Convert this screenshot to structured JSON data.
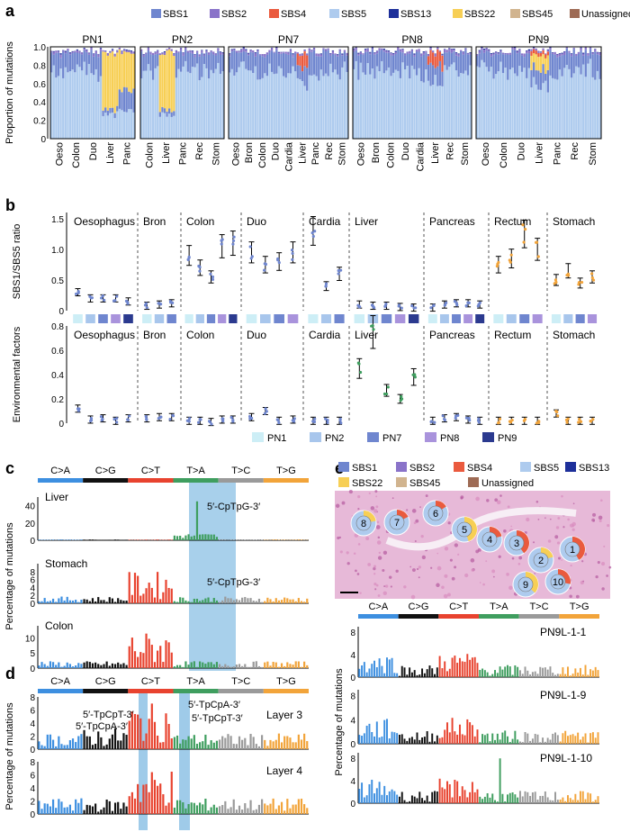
{
  "panels": {
    "a": "a",
    "b": "b",
    "c": "c",
    "d": "d",
    "e": "e"
  },
  "colors": {
    "SBS1": "#6f86cf",
    "SBS2": "#8a73c9",
    "SBS4": "#ea5a3e",
    "SBS5": "#aecbee",
    "SBS13": "#1d2f9a",
    "SBS22": "#f7cf55",
    "SBS45": "#d1b48f",
    "Unassigned": "#9e6b55",
    "PN1": "#cdeef6",
    "PN2": "#a8c6ec",
    "PN7": "#6f86cf",
    "PN8": "#a993dc",
    "PN9": "#2b3a8f",
    "CA": "#3d8fe0",
    "CG": "#111111",
    "CT": "#e8432f",
    "TA": "#3f9e5f",
    "TC": "#9a9a9a",
    "TG": "#f2a43a",
    "highlight": "#9fcbe9"
  },
  "legend_a": [
    "SBS1",
    "SBS2",
    "SBS4",
    "SBS5",
    "SBS13",
    "SBS22",
    "SBS45",
    "Unassigned"
  ],
  "chart_data": [
    {
      "id": "a",
      "type": "bar",
      "stacked": true,
      "ylabel": "Proportion of mutations",
      "ylim": [
        0,
        1
      ],
      "yticks": [
        "0",
        "0.2",
        "0.4",
        "0.6",
        "0.8",
        "1.0"
      ],
      "groups": [
        {
          "name": "PN1",
          "xlabels": [
            "Oeso",
            "Colon",
            "Duo",
            "Liver",
            "Panc"
          ]
        },
        {
          "name": "PN2",
          "xlabels": [
            "Colon",
            "Liver",
            "Panc",
            "Rec",
            "Stom"
          ]
        },
        {
          "name": "PN7",
          "xlabels": [
            "Oeso",
            "Bron",
            "Colon",
            "Duo",
            "Cardia",
            "Liver",
            "Panc",
            "Rec",
            "Stom"
          ]
        },
        {
          "name": "PN8",
          "xlabels": [
            "Oeso",
            "Bron",
            "Colon",
            "Duo",
            "Cardia",
            "Liver",
            "Rec",
            "Stom"
          ]
        },
        {
          "name": "PN9",
          "xlabels": [
            "Oeso",
            "Colon",
            "Duo",
            "Liver",
            "Panc",
            "Rec",
            "Stom"
          ]
        }
      ]
    },
    {
      "id": "b-top",
      "type": "scatter",
      "ylabel": "SBS1/SBS5 ratio",
      "ylim": [
        0,
        1.6
      ],
      "yticks": [
        "0",
        "0.5",
        "1.0",
        "1.5"
      ],
      "tissues": [
        "Oesophagus",
        "Bron",
        "Colon",
        "Duo",
        "Cardia",
        "Liver",
        "Pancreas",
        "Rectum",
        "Stomach"
      ],
      "values": [
        [
          0.3,
          0.2,
          0.2,
          0.2,
          0.15
        ],
        [
          0.08,
          0.1,
          0.12
        ],
        [
          0.9,
          0.7,
          0.55,
          1.05,
          1.1
        ],
        [
          0.95,
          0.75,
          0.8,
          0.95
        ],
        [
          1.3,
          0.4,
          0.6
        ],
        [
          0.1,
          0.08,
          0.08,
          0.06,
          0.05
        ],
        [
          0.05,
          0.1,
          0.12,
          0.12,
          0.1
        ],
        [
          0.75,
          0.85,
          1.25,
          1.0
        ],
        [
          0.5,
          0.65,
          0.45,
          0.55
        ]
      ]
    },
    {
      "id": "b-bottom",
      "type": "scatter",
      "ylabel": "Environmental factors",
      "ylim": [
        0,
        0.8
      ],
      "yticks": [
        "0",
        "0.2",
        "0.4",
        "0.6",
        "0.8"
      ],
      "tissues": [
        "Oesophagus",
        "Bron",
        "Colon",
        "Duo",
        "Cardia",
        "Liver",
        "Pancreas",
        "Rectum",
        "Stomach"
      ],
      "values": [
        [
          0.12,
          0.03,
          0.04,
          0.02,
          0.04
        ],
        [
          0.04,
          0.05,
          0.05
        ],
        [
          0.02,
          0.02,
          0.01,
          0.03,
          0.03
        ],
        [
          0.05,
          0.1,
          0.02,
          0.03
        ],
        [
          0.02,
          0.02,
          0.02
        ],
        [
          0.45,
          0.75,
          0.27,
          0.2,
          0.38
        ],
        [
          0.02,
          0.04,
          0.05,
          0.03,
          0.02
        ],
        [
          0.02,
          0.02,
          0.02,
          0.02
        ],
        [
          0.08,
          0.02,
          0.02,
          0.02
        ]
      ],
      "legend": [
        "PN1",
        "PN2",
        "PN7",
        "PN8",
        "PN9"
      ]
    },
    {
      "id": "c",
      "type": "bar",
      "ylabel": "Percentage of mutations",
      "categories": [
        "C>A",
        "C>G",
        "C>T",
        "T>A",
        "T>C",
        "T>G"
      ],
      "rows": [
        {
          "name": "Liver",
          "yticks": [
            "0",
            "20",
            "40"
          ],
          "ymax": 50,
          "annotation": "5′-CpTpG-3′"
        },
        {
          "name": "Stomach",
          "yticks": [
            "0",
            "2",
            "4",
            "6",
            "8"
          ],
          "ymax": 10,
          "annotation": "5′-CpTpG-3′"
        },
        {
          "name": "Colon",
          "yticks": [
            "0",
            "5",
            "10"
          ],
          "ymax": 14,
          "annotation": ""
        }
      ]
    },
    {
      "id": "d",
      "type": "bar",
      "ylabel": "Percentage of mutations",
      "categories": [
        "C>A",
        "C>G",
        "C>T",
        "T>A",
        "T>C",
        "T>G"
      ],
      "rows": [
        {
          "name": "Layer 3",
          "yticks": [
            "0",
            "2",
            "4",
            "6",
            "8"
          ],
          "ymax": 8
        },
        {
          "name": "Layer 4",
          "yticks": [
            "0",
            "2",
            "4",
            "6",
            "8"
          ],
          "ymax": 8
        }
      ],
      "annotations": [
        "5′-TpCpT-3′",
        "5′-TpCpA-3′",
        "5′-TpCpA-3′",
        "5′-TpCpT-3′"
      ]
    },
    {
      "id": "e",
      "type": "bar",
      "ylabel": "Percentage of mutations",
      "categories": [
        "C>A",
        "C>G",
        "C>T",
        "T>A",
        "T>C",
        "T>G"
      ],
      "legend": [
        "SBS1",
        "SBS2",
        "SBS4",
        "SBS5",
        "SBS13",
        "SBS22",
        "SBS45",
        "Unassigned"
      ],
      "pies": [
        "8",
        "7",
        "6",
        "5",
        "4",
        "3",
        "2",
        "1",
        "10",
        "9"
      ],
      "rows": [
        {
          "name": "PN9L-1-1",
          "yticks": [
            "0",
            "4",
            "8"
          ],
          "ymax": 9
        },
        {
          "name": "PN9L-1-9",
          "yticks": [
            "0",
            "4",
            "8"
          ],
          "ymax": 9
        },
        {
          "name": "PN9L-1-10",
          "yticks": [
            "0",
            "4",
            "8"
          ],
          "ymax": 9
        }
      ]
    }
  ]
}
